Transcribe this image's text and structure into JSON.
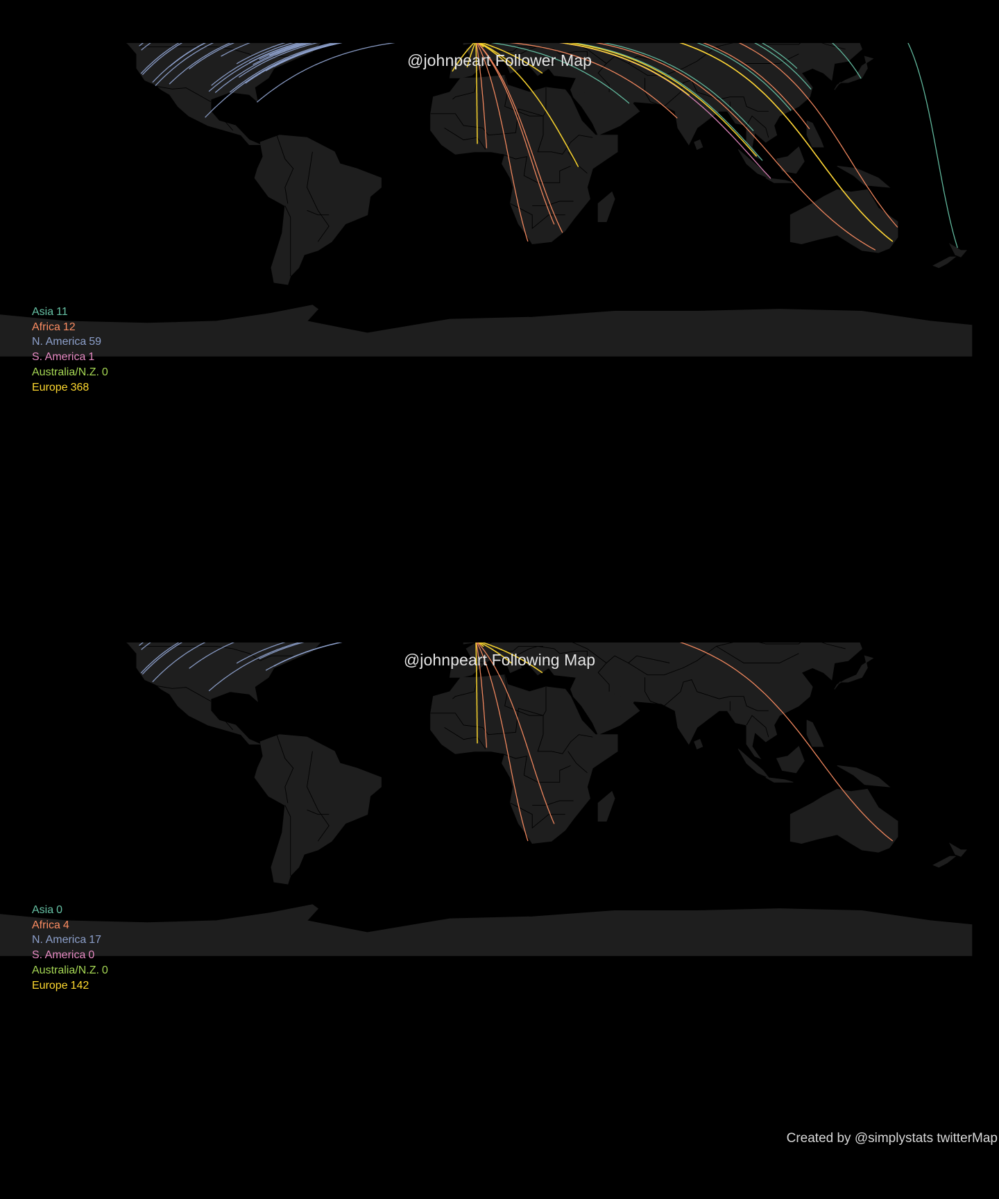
{
  "colors": {
    "background": "#000000",
    "land": "#1e1e1e",
    "border": "#000000",
    "Asia": "#66c2a5",
    "Africa": "#fc8d62",
    "N. America": "#8da0cb",
    "S. America": "#e78ac3",
    "Australia/N.Z.": "#a6d854",
    "Europe": "#ffd92f"
  },
  "origin": {
    "lon": -0.5,
    "lat": 51.5
  },
  "maps": [
    {
      "title": "@johnpeart Follower Map",
      "legend": [
        {
          "region": "Asia",
          "count": "11"
        },
        {
          "region": "Africa",
          "count": "12"
        },
        {
          "region": "N. America",
          "count": "59"
        },
        {
          "region": "S. America",
          "count": "1"
        },
        {
          "region": "Australia/N.Z.",
          "count": "0"
        },
        {
          "region": "Europe",
          "count": "368"
        }
      ],
      "connections": [
        {
          "region": "N. America",
          "lon": -122.4,
          "lat": 37.8
        },
        {
          "region": "N. America",
          "lon": -122.3,
          "lat": 47.6
        },
        {
          "region": "N. America",
          "lon": -118.2,
          "lat": 34.1
        },
        {
          "region": "N. America",
          "lon": -123.1,
          "lat": 49.3
        },
        {
          "region": "N. America",
          "lon": -121.9,
          "lat": 37.3
        },
        {
          "region": "N. America",
          "lon": -117.2,
          "lat": 32.7
        },
        {
          "region": "N. America",
          "lon": -112.1,
          "lat": 33.4
        },
        {
          "region": "N. America",
          "lon": -104.9,
          "lat": 39.7
        },
        {
          "region": "N. America",
          "lon": -114.1,
          "lat": 51.0
        },
        {
          "region": "N. America",
          "lon": -97.7,
          "lat": 30.3
        },
        {
          "region": "N. America",
          "lon": -96.8,
          "lat": 32.8
        },
        {
          "region": "N. America",
          "lon": -93.3,
          "lat": 45.0
        },
        {
          "region": "N. America",
          "lon": -87.6,
          "lat": 41.9
        },
        {
          "region": "N. America",
          "lon": -84.4,
          "lat": 33.7
        },
        {
          "region": "N. America",
          "lon": -83.0,
          "lat": 42.3
        },
        {
          "region": "N. America",
          "lon": -79.4,
          "lat": 43.7
        },
        {
          "region": "N. America",
          "lon": -75.7,
          "lat": 45.4
        },
        {
          "region": "N. America",
          "lon": -73.6,
          "lat": 45.5
        },
        {
          "region": "N. America",
          "lon": -74.0,
          "lat": 40.7
        },
        {
          "region": "N. America",
          "lon": -71.1,
          "lat": 42.4
        },
        {
          "region": "N. America",
          "lon": -77.0,
          "lat": 38.9
        },
        {
          "region": "N. America",
          "lon": -80.2,
          "lat": 25.8
        },
        {
          "region": "N. America",
          "lon": -90.1,
          "lat": 29.9
        },
        {
          "region": "N. America",
          "lon": -95.4,
          "lat": 29.8
        },
        {
          "region": "N. America",
          "lon": -99.1,
          "lat": 19.4
        },
        {
          "region": "N. America",
          "lon": -86.8,
          "lat": 36.2
        },
        {
          "region": "N. America",
          "lon": -81.7,
          "lat": 41.5
        },
        {
          "region": "N. America",
          "lon": -111.9,
          "lat": 40.8
        },
        {
          "region": "Asia",
          "lon": 139.7,
          "lat": 35.7
        },
        {
          "region": "Asia",
          "lon": 151.2,
          "lat": -33.9
        },
        {
          "region": "Asia",
          "lon": 121.5,
          "lat": 31.2
        },
        {
          "region": "Asia",
          "lon": 103.8,
          "lat": 1.35
        },
        {
          "region": "Asia",
          "lon": 114.2,
          "lat": 22.3
        },
        {
          "region": "Asia",
          "lon": 55.3,
          "lat": 25.3
        },
        {
          "region": "Asia",
          "lon": 100.5,
          "lat": 13.8
        },
        {
          "region": "Asia",
          "lon": 116.4,
          "lat": 39.9
        },
        {
          "region": "Asia",
          "lon": 174.8,
          "lat": -36.8
        },
        {
          "region": "Africa",
          "lon": 18.4,
          "lat": -33.9
        },
        {
          "region": "Africa",
          "lon": 28.0,
          "lat": -26.2
        },
        {
          "region": "Africa",
          "lon": 31.0,
          "lat": -29.9
        },
        {
          "region": "Africa",
          "lon": 3.4,
          "lat": 6.5
        },
        {
          "region": "Africa",
          "lon": 151.2,
          "lat": -33.9
        },
        {
          "region": "Africa",
          "lon": 144.9,
          "lat": -37.8
        },
        {
          "region": "Africa",
          "lon": 153.0,
          "lat": -27.5
        },
        {
          "region": "Africa",
          "lon": 72.8,
          "lat": 19.1
        },
        {
          "region": "Africa",
          "lon": 120.9,
          "lat": 14.6
        },
        {
          "region": "S. America",
          "lon": 106.8,
          "lat": -6.2
        },
        {
          "region": "Europe",
          "lon": 36.8,
          "lat": -1.3
        },
        {
          "region": "Europe",
          "lon": 23.7,
          "lat": 37.9
        },
        {
          "region": "Europe",
          "lon": 77.2,
          "lat": 28.6
        },
        {
          "region": "Europe",
          "lon": 101.7,
          "lat": 3.1
        },
        {
          "region": "Europe",
          "lon": 151.2,
          "lat": -33.9
        },
        {
          "region": "Europe",
          "lon": 12.5,
          "lat": 41.9
        },
        {
          "region": "Europe",
          "lon": 2.3,
          "lat": 48.9
        },
        {
          "region": "Europe",
          "lon": 4.9,
          "lat": 52.4
        },
        {
          "region": "Europe",
          "lon": -3.7,
          "lat": 40.4
        },
        {
          "region": "Europe",
          "lon": -9.1,
          "lat": 38.7
        },
        {
          "region": "Europe",
          "lon": 13.4,
          "lat": 52.5
        },
        {
          "region": "Europe",
          "lon": -6.3,
          "lat": 53.3
        },
        {
          "region": "Europe",
          "lon": -2.2,
          "lat": 53.5
        },
        {
          "region": "Europe",
          "lon": -3.2,
          "lat": 55.95
        },
        {
          "region": "Europe",
          "lon": 0.0,
          "lat": 8.3
        },
        {
          "region": "Europe",
          "lon": 1.3,
          "lat": 52.6
        }
      ]
    },
    {
      "title": "@johnpeart Following Map",
      "legend": [
        {
          "region": "Asia",
          "count": "0"
        },
        {
          "region": "Africa",
          "count": "4"
        },
        {
          "region": "N. America",
          "count": "17"
        },
        {
          "region": "S. America",
          "count": "0"
        },
        {
          "region": "Australia/N.Z.",
          "count": "0"
        },
        {
          "region": "Europe",
          "count": "142"
        }
      ],
      "connections": [
        {
          "region": "N. America",
          "lon": -122.4,
          "lat": 37.8
        },
        {
          "region": "N. America",
          "lon": -122.3,
          "lat": 47.6
        },
        {
          "region": "N. America",
          "lon": -121.9,
          "lat": 37.3
        },
        {
          "region": "N. America",
          "lon": -118.2,
          "lat": 34.1
        },
        {
          "region": "N. America",
          "lon": -123.1,
          "lat": 49.3
        },
        {
          "region": "N. America",
          "lon": -87.6,
          "lat": 41.9
        },
        {
          "region": "N. America",
          "lon": -79.4,
          "lat": 43.7
        },
        {
          "region": "N. America",
          "lon": -74.0,
          "lat": 40.7
        },
        {
          "region": "N. America",
          "lon": -71.1,
          "lat": 42.4
        },
        {
          "region": "N. America",
          "lon": -77.0,
          "lat": 38.9
        },
        {
          "region": "N. America",
          "lon": -104.9,
          "lat": 39.7
        },
        {
          "region": "N. America",
          "lon": -97.7,
          "lat": 30.3
        },
        {
          "region": "Africa",
          "lon": 18.4,
          "lat": -33.9
        },
        {
          "region": "Africa",
          "lon": 151.2,
          "lat": -33.9
        },
        {
          "region": "Africa",
          "lon": 3.4,
          "lat": 6.5
        },
        {
          "region": "Africa",
          "lon": 28.0,
          "lat": -26.2
        },
        {
          "region": "Europe",
          "lon": 23.7,
          "lat": 37.9
        },
        {
          "region": "Europe",
          "lon": 21.0,
          "lat": 52.2
        },
        {
          "region": "Europe",
          "lon": 0.0,
          "lat": 8.3
        },
        {
          "region": "Europe",
          "lon": 12.5,
          "lat": 41.9
        },
        {
          "region": "Europe",
          "lon": 2.3,
          "lat": 48.9
        },
        {
          "region": "Europe",
          "lon": -6.3,
          "lat": 53.3
        }
      ]
    }
  ],
  "credit": "Created by @simplystats twitterMap"
}
